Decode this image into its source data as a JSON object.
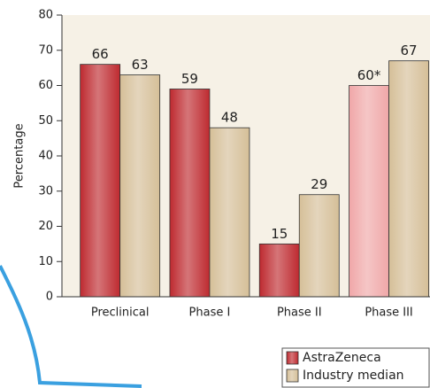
{
  "chart_data": {
    "type": "bar",
    "y_label": "Percentage",
    "categories": [
      "Preclinical",
      "Phase I",
      "Phase II",
      "Phase III"
    ],
    "series": [
      {
        "name": "AstraZeneca",
        "color": "#be2a30",
        "colors": [
          "#be2a30",
          "#be2a30",
          "#be2a30",
          "#f0a7a8"
        ],
        "values": [
          66,
          59,
          15,
          60
        ],
        "value_labels": [
          "66",
          "59",
          "15",
          "60*"
        ]
      },
      {
        "name": "Industry median",
        "color": "#d5bf98",
        "values": [
          63,
          48,
          29,
          67
        ]
      }
    ],
    "ylim": [
      0,
      80
    ],
    "yticks": [
      0,
      10,
      20,
      30,
      40,
      50,
      60,
      70,
      80
    ],
    "legend": "bottom-right"
  }
}
